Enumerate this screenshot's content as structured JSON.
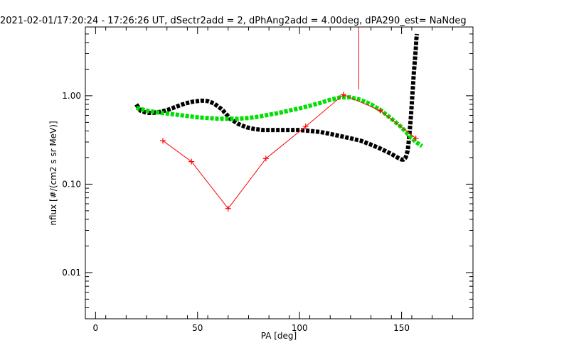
{
  "chart_data": {
    "type": "scatter",
    "title": "2021-02-01/17:20:24 - 17:26:26 UT, dSectr2add = 2, dPhAng2add = 4.00deg, dPA290_est=   NaNdeg",
    "xlabel": "PA [deg]",
    "ylabel": "nflux [#/(cm2 s sr MeV)]",
    "xlim": [
      -5,
      185
    ],
    "ylim": [
      0.003,
      6.0
    ],
    "yscale": "log",
    "x_ticks": [
      0,
      50,
      100,
      150
    ],
    "y_ticks": [
      0.01,
      0.1,
      1.0
    ],
    "x_tick_labels": [
      "0",
      "50",
      "100",
      "150"
    ],
    "y_tick_labels": [
      "0.01",
      "0.10",
      "1.00"
    ],
    "grid": false,
    "series": [
      {
        "color": "#000000",
        "style": "thick-dashed",
        "x": [
          20,
          22,
          25,
          28,
          32,
          36,
          40,
          44,
          48,
          52,
          55,
          58,
          62,
          66,
          70,
          74,
          78,
          82,
          86,
          90,
          95,
          100,
          105,
          110,
          115,
          120,
          125,
          130,
          135,
          140,
          145,
          148,
          150,
          151,
          152,
          153,
          153.5,
          154,
          154.5,
          155,
          155.5,
          156,
          156.5,
          157,
          157.2,
          157.5
        ],
        "y": [
          0.8,
          0.68,
          0.64,
          0.64,
          0.66,
          0.7,
          0.76,
          0.82,
          0.86,
          0.88,
          0.87,
          0.82,
          0.7,
          0.55,
          0.48,
          0.44,
          0.42,
          0.41,
          0.41,
          0.41,
          0.41,
          0.41,
          0.4,
          0.39,
          0.37,
          0.35,
          0.33,
          0.31,
          0.28,
          0.25,
          0.22,
          0.2,
          0.19,
          0.19,
          0.2,
          0.24,
          0.3,
          0.4,
          0.55,
          0.8,
          1.2,
          1.8,
          2.5,
          3.5,
          4.3,
          5.0
        ]
      },
      {
        "color": "#00e000",
        "style": "thick-dashed",
        "x": [
          20,
          25,
          30,
          35,
          40,
          45,
          50,
          55,
          60,
          65,
          70,
          75,
          80,
          85,
          90,
          95,
          100,
          105,
          110,
          115,
          120,
          125,
          130,
          135,
          140,
          145,
          150,
          153,
          155,
          157,
          160
        ],
        "y": [
          0.73,
          0.68,
          0.65,
          0.63,
          0.61,
          0.59,
          0.57,
          0.56,
          0.55,
          0.55,
          0.55,
          0.56,
          0.58,
          0.61,
          0.64,
          0.68,
          0.72,
          0.77,
          0.83,
          0.9,
          0.96,
          0.96,
          0.9,
          0.8,
          0.68,
          0.55,
          0.44,
          0.37,
          0.33,
          0.3,
          0.27
        ]
      },
      {
        "color": "#ff0000",
        "style": "line-plus",
        "x": [
          33,
          47,
          65,
          83.5,
          103,
          121.5,
          139.5,
          157
        ],
        "y": [
          0.31,
          0.18,
          0.053,
          0.195,
          0.45,
          1.03,
          0.68,
          0.33
        ]
      },
      {
        "color": "#ff0000",
        "style": "thin-line",
        "x": [
          129,
          129
        ],
        "y": [
          1.18,
          6.0
        ]
      }
    ]
  }
}
